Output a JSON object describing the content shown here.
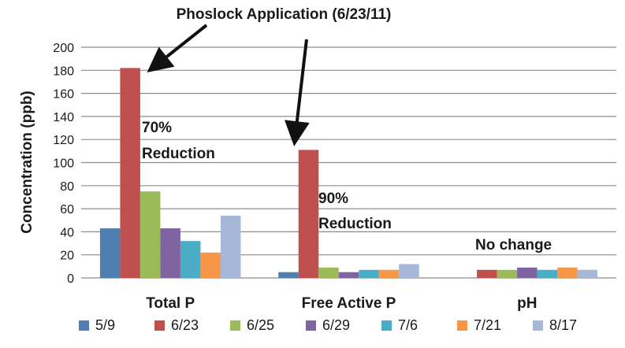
{
  "chart_data": {
    "type": "bar",
    "title": "",
    "ylabel": "Concentration (ppb)",
    "xlabel": "",
    "ylim": [
      0,
      200
    ],
    "yticks": [
      0,
      20,
      40,
      60,
      80,
      100,
      120,
      140,
      160,
      180,
      200
    ],
    "grid": true,
    "legend_position": "bottom",
    "categories": [
      "Total P",
      "Free Active P",
      "pH"
    ],
    "series": [
      {
        "name": "5/9",
        "color": "#4f7fb0",
        "values": [
          43,
          5,
          null
        ]
      },
      {
        "name": "6/23",
        "color": "#c0504d",
        "values": [
          182,
          111,
          7
        ]
      },
      {
        "name": "6/25",
        "color": "#9bbb59",
        "values": [
          75,
          9,
          7
        ]
      },
      {
        "name": "6/29",
        "color": "#8064a2",
        "values": [
          43,
          5,
          9
        ]
      },
      {
        "name": "7/6",
        "color": "#4bacc6",
        "values": [
          32,
          7,
          7
        ]
      },
      {
        "name": "7/21",
        "color": "#f79646",
        "values": [
          22,
          7,
          9
        ]
      },
      {
        "name": "8/17",
        "color": "#a5b8d7",
        "values": [
          54,
          12,
          7
        ]
      }
    ],
    "annotations": {
      "application": "Phoslock Application (6/23/11)",
      "total_p_pct": "70%",
      "total_p_word": "Reduction",
      "free_p_pct": "90%",
      "free_p_word": "Reduction",
      "ph_note": "No change"
    }
  }
}
